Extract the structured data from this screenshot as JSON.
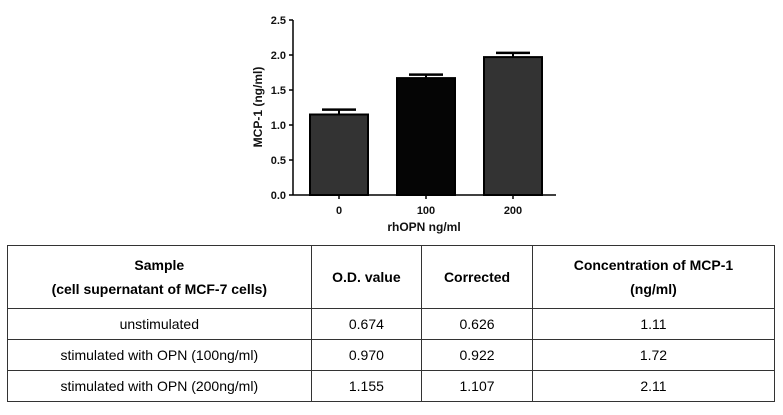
{
  "chart_data": {
    "type": "bar",
    "title": "",
    "xlabel": "rhOPN ng/ml",
    "ylabel": "MCP-1 (ng/ml)",
    "categories": [
      "0",
      "100",
      "200"
    ],
    "values": [
      1.15,
      1.67,
      1.97
    ],
    "errors": [
      0.07,
      0.05,
      0.06
    ],
    "bar_colors": [
      "#333333",
      "#050505",
      "#333333"
    ],
    "ylim": [
      0,
      2.5
    ],
    "yticks": [
      "0.0",
      "0.5",
      "1.0",
      "1.5",
      "2.0",
      "2.5"
    ],
    "grid": false
  },
  "table": {
    "headers": [
      {
        "line1": "Sample",
        "line2": "(cell supernatant of MCF-7 cells)"
      },
      {
        "line1": "O.D. value",
        "line2": ""
      },
      {
        "line1": "Corrected",
        "line2": ""
      },
      {
        "line1": "Concentration of MCP-1",
        "line2": "(ng/ml)"
      }
    ],
    "rows": [
      [
        "unstimulated",
        "0.674",
        "0.626",
        "1.11"
      ],
      [
        "stimulated with OPN (100ng/ml)",
        "0.970",
        "0.922",
        "1.72"
      ],
      [
        "stimulated with OPN (200ng/ml)",
        "1.155",
        "1.107",
        "2.11"
      ]
    ]
  }
}
